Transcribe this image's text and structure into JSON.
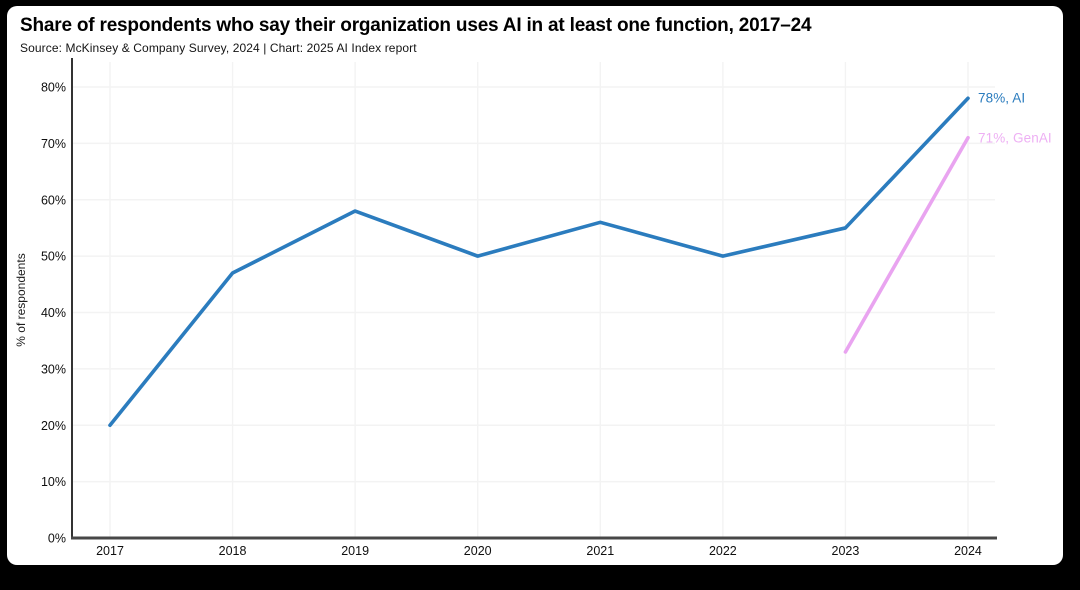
{
  "header": {
    "title": "Share of respondents who say their organization uses AI in at least one function, 2017–24",
    "source_line": "Source: McKinsey & Company Survey, 2024 | Chart: 2025 AI Index report"
  },
  "chart_data": {
    "type": "line",
    "title": "Share of respondents who say their organization uses AI in at least one function, 2017–24",
    "xlabel": "",
    "ylabel": "% of respondents",
    "x_ticks": [
      "2017",
      "2018",
      "2019",
      "2020",
      "2021",
      "2022",
      "2023",
      "2024"
    ],
    "y_ticks": [
      "0%",
      "10%",
      "20%",
      "30%",
      "40%",
      "50%",
      "60%",
      "70%",
      "80%"
    ],
    "ylim": [
      0,
      80
    ],
    "ytick_step": 10,
    "grid": true,
    "legend_position": "end-of-line inline labels",
    "series": [
      {
        "name": "AI",
        "color": "#2b7cbe",
        "label_color": "#2b7cbe",
        "x": [
          2017,
          2018,
          2019,
          2020,
          2021,
          2022,
          2023,
          2024
        ],
        "values": [
          20,
          47,
          58,
          50,
          56,
          50,
          55,
          78
        ],
        "end_label": "78%, AI"
      },
      {
        "name": "GenAI",
        "color": "#e9a4f0",
        "label_color": "#eeb0f4",
        "x": [
          2023,
          2024
        ],
        "values": [
          33,
          71
        ],
        "end_label": "71%, GenAI"
      }
    ]
  },
  "style": {
    "background": "#000000",
    "card_background": "#ffffff",
    "x_axis_color": "#474747",
    "y_axis_color": "#333333",
    "gridline_color": "#f3f3f3",
    "tick_color": "#0f0f0f"
  }
}
